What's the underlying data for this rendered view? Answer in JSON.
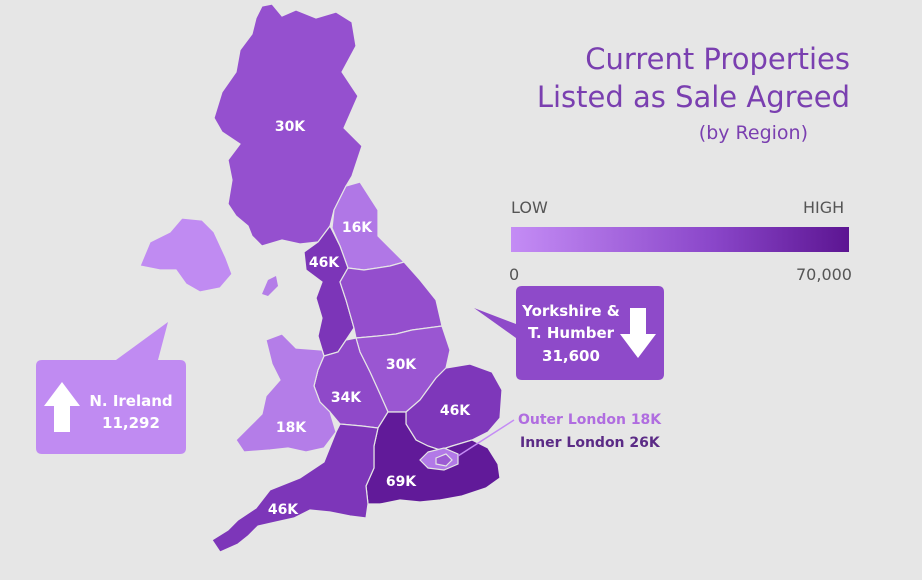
{
  "title": {
    "line1": "Current Properties",
    "line2": "Listed as Sale Agreed",
    "line3": "(by Region)"
  },
  "legend": {
    "low": "LOW",
    "high": "HIGH",
    "min": "0",
    "max": "70,000",
    "color_low": "#c48cf5",
    "color_high": "#5c1592",
    "range": [
      0,
      70000
    ]
  },
  "regions": [
    {
      "name": "Scotland",
      "label": "30K",
      "value": 30000,
      "color": "#9550cf"
    },
    {
      "name": "North East",
      "label": "16K",
      "value": 16000,
      "color": "#b077e6"
    },
    {
      "name": "North West",
      "label": "46K",
      "value": 46000,
      "color": "#7c35b8"
    },
    {
      "name": "Yorkshire & T. Humber",
      "label": "",
      "value": 31600,
      "color": "#944ecd"
    },
    {
      "name": "East Midlands",
      "label": "30K",
      "value": 30000,
      "color": "#9a56d2"
    },
    {
      "name": "West Midlands",
      "label": "34K",
      "value": 34000,
      "color": "#8f49c9"
    },
    {
      "name": "Wales",
      "label": "18K",
      "value": 18000,
      "color": "#b47de8"
    },
    {
      "name": "East of England",
      "label": "46K",
      "value": 46000,
      "color": "#7e37ba"
    },
    {
      "name": "South East",
      "label": "69K",
      "value": 69000,
      "color": "#611a99"
    },
    {
      "name": "South West",
      "label": "46K",
      "value": 46000,
      "color": "#7d36b9"
    },
    {
      "name": "N. Ireland",
      "label": "",
      "value": 11292,
      "color": "#c08bf2"
    },
    {
      "name": "Outer London",
      "label": "",
      "value": 18000,
      "color": "#b279e7"
    },
    {
      "name": "Inner London",
      "label": "",
      "value": 26000,
      "color": "#9c5bd3"
    }
  ],
  "callouts": {
    "yorkshire": {
      "line1": "Yorkshire &",
      "line2": "T. Humber",
      "value": "31,600",
      "trend": "down",
      "color": "#8e4ac9"
    },
    "ireland": {
      "line1": "N. Ireland",
      "value": "11,292",
      "trend": "up",
      "color": "#c08bf2"
    },
    "london": {
      "outer": "Outer London 18K",
      "inner": "Inner London 26K"
    }
  }
}
